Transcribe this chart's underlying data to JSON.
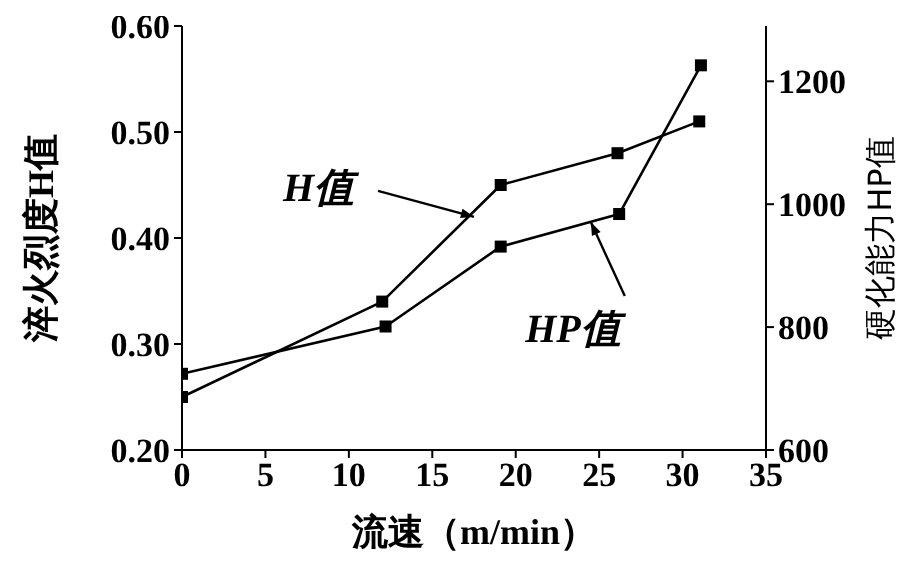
{
  "chart_data": {
    "type": "line",
    "xlabel": "流速（m/min）",
    "ylabel": "淬火烈度H值",
    "y2label": "硬化能力HP值",
    "xlim": [
      0,
      35
    ],
    "xticks": [
      0,
      5,
      10,
      15,
      20,
      25,
      30,
      35
    ],
    "ylim": [
      0.2,
      0.6
    ],
    "yticks": [
      {
        "value": 0.2,
        "label": "0.20"
      },
      {
        "value": 0.3,
        "label": "0.30"
      },
      {
        "value": 0.4,
        "label": "0.40"
      },
      {
        "value": 0.5,
        "label": "0.50"
      },
      {
        "value": 0.6,
        "label": "0.60"
      }
    ],
    "y2lim": [
      600,
      1290
    ],
    "y2ticks": [
      600,
      800,
      1000,
      1200
    ],
    "marker": "square",
    "line_style": "solid",
    "grid": false,
    "legend": false,
    "series": [
      {
        "color": "#000000",
        "x": [
          0,
          12,
          19.1,
          26.1,
          31
        ],
        "values": [
          0.25,
          0.34,
          0.45,
          0.48,
          0.51
        ]
      },
      {
        "color": "#000000",
        "axis": "y2",
        "x": [
          0,
          12.2,
          19.1,
          26.2,
          31.1
        ],
        "values": [
          724,
          801,
          931,
          984,
          1226
        ]
      }
    ],
    "annotations": [
      {
        "text": "H值",
        "x": 17.5,
        "y": 0.42
      },
      {
        "text": "HP值",
        "x": 24.5,
        "y": 0.415
      }
    ]
  }
}
